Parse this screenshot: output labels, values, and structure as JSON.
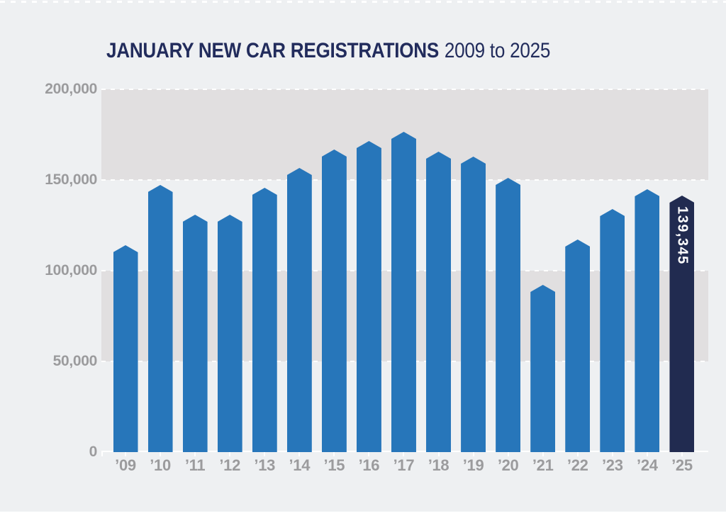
{
  "title": {
    "main": "JANUARY NEW CAR REGISTRATIONS",
    "sub": "2009 to 2025"
  },
  "colors": {
    "background": "#eef0f2",
    "band": "#e1dfe0",
    "bar": "#2776ba",
    "highlight_bar": "#212b50",
    "title_text": "#222c5c",
    "axis_label": "#9b9b9d",
    "gridline": "#ffffff",
    "highlight_label_text": "#ffffff"
  },
  "chart_data": {
    "type": "bar",
    "title": "JANUARY NEW CAR REGISTRATIONS",
    "subtitle": "2009 to 2025",
    "categories": [
      "’09",
      "’10",
      "’11",
      "’12",
      "’13",
      "’14",
      "’15",
      "’16",
      "’17",
      "’18",
      "’19",
      "’20",
      "’21",
      "’22",
      "’23",
      "’24",
      "’25"
    ],
    "values": [
      112087,
      145479,
      128811,
      128853,
      143643,
      154562,
      164856,
      169678,
      174564,
      163615,
      161013,
      149279,
      90249,
      115087,
      131994,
      142876,
      139345
    ],
    "xlabel": "",
    "ylabel": "",
    "ylim": [
      0,
      200000
    ],
    "yticks": [
      {
        "label": "200,000",
        "value": 200000
      },
      {
        "label": "150,000",
        "value": 150000
      },
      {
        "label": "100,000",
        "value": 100000
      },
      {
        "label": "50,000",
        "value": 50000
      },
      {
        "label": "0",
        "value": 0
      }
    ],
    "bands": [
      [
        150000,
        200000
      ],
      [
        50000,
        100000
      ]
    ],
    "grid": "horizontal white dashed lines every 50,000, drawn behind bars",
    "legend": "none",
    "bar_shape": "pentagon (pointed top cap)",
    "highlight": {
      "index": 16,
      "category": "’25",
      "value": 139345,
      "label": "139,345",
      "label_orientation": "rotated 90° clockwise, top of bar"
    }
  }
}
